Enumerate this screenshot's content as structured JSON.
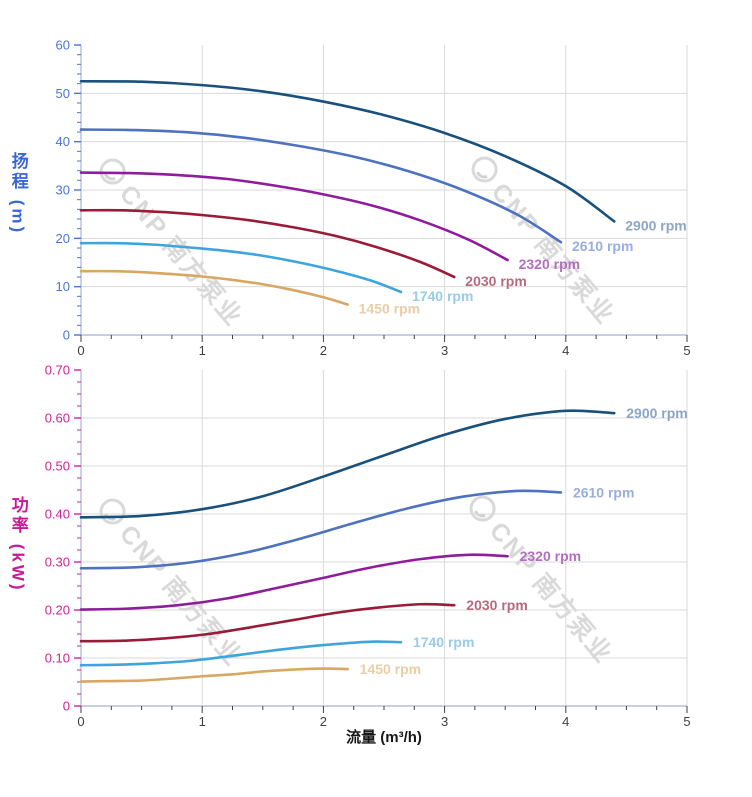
{
  "watermark": {
    "text": "CNP 南方泵业"
  },
  "axes": {
    "head_axis_title": "扬程 (m)",
    "power_axis_title": "功率 (kW)",
    "flow_axis_title": "流量 (m³/h)"
  },
  "colors": {
    "grid": "#d9d9d9",
    "axis_line": "#b5bfd6",
    "x_tick": "#3f3f3f",
    "head_axis_accent": "#4a74d9",
    "power_axis_accent": "#d4219a"
  },
  "chart_data": [
    {
      "type": "line",
      "name": "head-vs-flow",
      "title": "",
      "ylabel": "扬程 (m)",
      "xlabel": "流量 (m³/h)",
      "xlim": [
        0,
        5
      ],
      "ylim": [
        0,
        60
      ],
      "x_major_step": 1,
      "x_minor_step": 0.25,
      "y_major_step": 10,
      "y_minor_step": 2,
      "x_tick_labels": [
        "0",
        "1",
        "2",
        "3",
        "4",
        "5"
      ],
      "y_tick_labels": [
        "0",
        "10",
        "20",
        "30",
        "40",
        "50",
        "60"
      ],
      "grid": true,
      "legend_position": "end-of-curve",
      "axis_tick_label_color": "#4a74d9",
      "series": [
        {
          "name": "2900 rpm",
          "color": "#19507c",
          "label_color": "#8da6c1",
          "points": [
            [
              0,
              52.5
            ],
            [
              0.5,
              52.4
            ],
            [
              1,
              51.7
            ],
            [
              1.5,
              50.4
            ],
            [
              2,
              48.3
            ],
            [
              2.5,
              45.5
            ],
            [
              3,
              41.8
            ],
            [
              3.5,
              37.0
            ],
            [
              4,
              30.8
            ],
            [
              4.4,
              23.5
            ]
          ]
        },
        {
          "name": "2610 rpm",
          "color": "#4d72c0",
          "label_color": "#9aade0",
          "points": [
            [
              0,
              42.5
            ],
            [
              0.45,
              42.4
            ],
            [
              0.9,
              41.9
            ],
            [
              1.35,
              40.8
            ],
            [
              1.8,
              39.1
            ],
            [
              2.25,
              36.9
            ],
            [
              2.7,
              33.9
            ],
            [
              3.15,
              30.0
            ],
            [
              3.6,
              24.9
            ],
            [
              3.96,
              19.2
            ]
          ]
        },
        {
          "name": "2320 rpm",
          "color": "#8f1d9b",
          "label_color": "#b56cc3",
          "points": [
            [
              0,
              33.6
            ],
            [
              0.4,
              33.5
            ],
            [
              0.8,
              33.1
            ],
            [
              1.2,
              32.3
            ],
            [
              1.6,
              30.9
            ],
            [
              2,
              29.1
            ],
            [
              2.4,
              26.8
            ],
            [
              2.8,
              23.7
            ],
            [
              3.2,
              19.7
            ],
            [
              3.52,
              15.5
            ]
          ]
        },
        {
          "name": "2030 rpm",
          "color": "#9a1b38",
          "label_color": "#b56b7d",
          "points": [
            [
              0,
              25.8
            ],
            [
              0.35,
              25.8
            ],
            [
              0.7,
              25.4
            ],
            [
              1.05,
              24.7
            ],
            [
              1.4,
              23.7
            ],
            [
              1.75,
              22.3
            ],
            [
              2.1,
              20.5
            ],
            [
              2.45,
              18.1
            ],
            [
              2.8,
              15.1
            ],
            [
              3.08,
              12.0
            ]
          ]
        },
        {
          "name": "1740 rpm",
          "color": "#3ea4de",
          "label_color": "#98cce9",
          "points": [
            [
              0,
              19.0
            ],
            [
              0.3,
              19.0
            ],
            [
              0.6,
              18.7
            ],
            [
              0.9,
              18.1
            ],
            [
              1.2,
              17.4
            ],
            [
              1.5,
              16.4
            ],
            [
              1.8,
              15.0
            ],
            [
              2.1,
              13.3
            ],
            [
              2.4,
              11.2
            ],
            [
              2.64,
              8.9
            ]
          ]
        },
        {
          "name": "1450 rpm",
          "color": "#d7a763",
          "label_color": "#eacda4",
          "points": [
            [
              0,
              13.2
            ],
            [
              0.25,
              13.2
            ],
            [
              0.5,
              13.0
            ],
            [
              0.75,
              12.6
            ],
            [
              1,
              12.1
            ],
            [
              1.25,
              11.4
            ],
            [
              1.5,
              10.5
            ],
            [
              1.75,
              9.3
            ],
            [
              2,
              7.8
            ],
            [
              2.2,
              6.3
            ]
          ]
        }
      ]
    },
    {
      "type": "line",
      "name": "power-vs-flow",
      "title": "",
      "ylabel": "功率 (kW)",
      "xlabel": "流量 (m³/h)",
      "xlim": [
        0,
        5
      ],
      "ylim": [
        0,
        0.7
      ],
      "x_major_step": 1,
      "x_minor_step": 0.25,
      "y_major_step": 0.1,
      "y_minor_step": 0.025,
      "x_tick_labels": [
        "0",
        "1",
        "2",
        "3",
        "4",
        "5"
      ],
      "y_tick_labels": [
        "0",
        "0.10",
        "0.20",
        "0.30",
        "0.40",
        "0.50",
        "0.60",
        "0.70"
      ],
      "grid": true,
      "legend_position": "end-of-curve",
      "axis_tick_label_color": "#d4219a",
      "series": [
        {
          "name": "2900 rpm",
          "color": "#19507c",
          "label_color": "#8da6c1",
          "points": [
            [
              0,
              0.393
            ],
            [
              0.5,
              0.396
            ],
            [
              1,
              0.41
            ],
            [
              1.5,
              0.437
            ],
            [
              2,
              0.478
            ],
            [
              2.5,
              0.522
            ],
            [
              3,
              0.565
            ],
            [
              3.5,
              0.598
            ],
            [
              4,
              0.615
            ],
            [
              4.4,
              0.61
            ]
          ]
        },
        {
          "name": "2610 rpm",
          "color": "#4d72c0",
          "label_color": "#9aade0",
          "points": [
            [
              0,
              0.287
            ],
            [
              0.45,
              0.289
            ],
            [
              0.9,
              0.299
            ],
            [
              1.35,
              0.319
            ],
            [
              1.8,
              0.348
            ],
            [
              2.25,
              0.381
            ],
            [
              2.7,
              0.412
            ],
            [
              3.15,
              0.436
            ],
            [
              3.6,
              0.448
            ],
            [
              3.96,
              0.445
            ]
          ]
        },
        {
          "name": "2320 rpm",
          "color": "#8f1d9b",
          "label_color": "#b56cc3",
          "points": [
            [
              0,
              0.201
            ],
            [
              0.4,
              0.203
            ],
            [
              0.8,
              0.21
            ],
            [
              1.2,
              0.224
            ],
            [
              1.6,
              0.245
            ],
            [
              2,
              0.267
            ],
            [
              2.4,
              0.289
            ],
            [
              2.8,
              0.306
            ],
            [
              3.2,
              0.315
            ],
            [
              3.52,
              0.312
            ]
          ]
        },
        {
          "name": "2030 rpm",
          "color": "#9a1b38",
          "label_color": "#b56b7d",
          "points": [
            [
              0,
              0.135
            ],
            [
              0.35,
              0.136
            ],
            [
              0.7,
              0.141
            ],
            [
              1.05,
              0.15
            ],
            [
              1.4,
              0.164
            ],
            [
              1.75,
              0.179
            ],
            [
              2.1,
              0.194
            ],
            [
              2.45,
              0.205
            ],
            [
              2.8,
              0.212
            ],
            [
              3.08,
              0.21
            ]
          ]
        },
        {
          "name": "1740 rpm",
          "color": "#3ea4de",
          "label_color": "#98cce9",
          "points": [
            [
              0,
              0.085
            ],
            [
              0.3,
              0.086
            ],
            [
              0.6,
              0.089
            ],
            [
              0.9,
              0.094
            ],
            [
              1.2,
              0.103
            ],
            [
              1.5,
              0.113
            ],
            [
              1.8,
              0.122
            ],
            [
              2.1,
              0.129
            ],
            [
              2.4,
              0.134
            ],
            [
              2.64,
              0.133
            ]
          ]
        },
        {
          "name": "1450 rpm",
          "color": "#d7a763",
          "label_color": "#eacda4",
          "points": [
            [
              0,
              0.051
            ],
            [
              0.25,
              0.052
            ],
            [
              0.5,
              0.053
            ],
            [
              0.75,
              0.057
            ],
            [
              1,
              0.062
            ],
            [
              1.25,
              0.066
            ],
            [
              1.5,
              0.072
            ],
            [
              1.75,
              0.076
            ],
            [
              2,
              0.078
            ],
            [
              2.2,
              0.077
            ]
          ]
        }
      ]
    }
  ]
}
